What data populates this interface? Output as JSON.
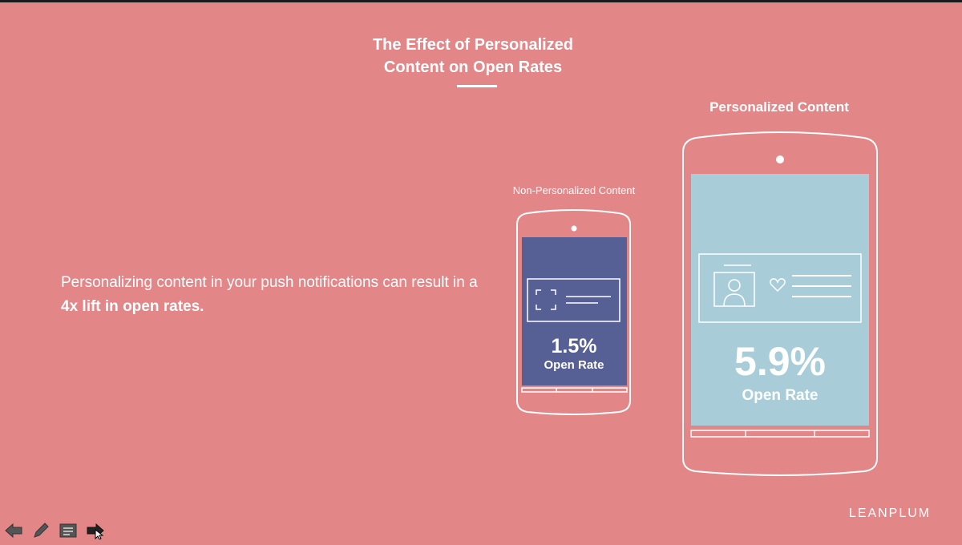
{
  "slide": {
    "title_line1": "The Effect of Personalized",
    "title_line2": "Content on Open Rates",
    "body_prefix": "Personalizing content in your push notifications can result in a ",
    "body_bold": "4x lift in open rates.",
    "brand": "LEANPLUM"
  },
  "phones": {
    "non_personalized": {
      "label": "Non-Personalized Content",
      "value": "1.5%",
      "value_label": "Open Rate",
      "screen_color": "#566094"
    },
    "personalized": {
      "label": "Personalized Content",
      "value": "5.9%",
      "value_label": "Open Rate",
      "screen_color": "#a8cdd8"
    }
  },
  "colors": {
    "background": "#e38687",
    "outline": "#ffffff"
  },
  "toolbar": {
    "items": [
      "back-arrow-icon",
      "pen-icon",
      "notes-icon",
      "pointer-icon"
    ]
  }
}
